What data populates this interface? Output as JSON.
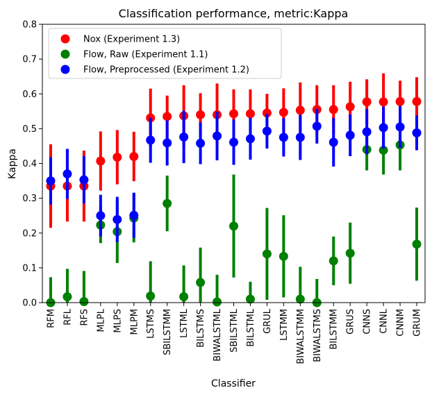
{
  "chart_data": {
    "type": "scatter",
    "title": "Classification performance, metric:Kappa",
    "xlabel": "Classifier",
    "ylabel": "Kappa",
    "ylim": [
      0.0,
      0.8
    ],
    "yticks": [
      "0.0",
      "0.1",
      "0.2",
      "0.3",
      "0.4",
      "0.5",
      "0.6",
      "0.7",
      "0.8"
    ],
    "legend_position": "top-left",
    "grid": false,
    "categories": [
      "RFM",
      "RFL",
      "RFS",
      "MLPL",
      "MLPS",
      "MLPM",
      "LSTMS",
      "SBILSTMM",
      "LSTML",
      "BILSTMS",
      "BIWALSTML",
      "SBILSTML",
      "BILSTML",
      "GRUL",
      "LSTMM",
      "BIWALSTMM",
      "BIWALSTMS",
      "BILSTMM",
      "GRUS",
      "CNNS",
      "CNNL",
      "CNNM",
      "GRUM"
    ],
    "series": [
      {
        "name": "Nox (Experiment 1.3)",
        "color": "#ff0000",
        "values": [
          0.335,
          0.335,
          0.335,
          0.407,
          0.418,
          0.42,
          0.531,
          0.535,
          0.537,
          0.54,
          0.54,
          0.543,
          0.543,
          0.545,
          0.547,
          0.553,
          0.555,
          0.555,
          0.563,
          0.577,
          0.577,
          0.578,
          0.578
        ],
        "errors": [
          0.12,
          0.102,
          0.102,
          0.085,
          0.078,
          0.071,
          0.084,
          0.06,
          0.088,
          0.062,
          0.09,
          0.07,
          0.07,
          0.055,
          0.069,
          0.08,
          0.07,
          0.07,
          0.072,
          0.065,
          0.082,
          0.06,
          0.07
        ]
      },
      {
        "name": "Flow, Raw (Experiment 1.1)",
        "color": "#008000",
        "values": [
          0.0,
          0.017,
          0.003,
          0.223,
          0.204,
          0.243,
          0.019,
          0.285,
          0.017,
          0.058,
          0.002,
          0.22,
          0.01,
          0.14,
          0.133,
          0.01,
          0.0,
          0.12,
          0.142,
          0.44,
          0.438,
          0.453,
          0.168
        ],
        "errors": [
          0.073,
          0.08,
          0.088,
          0.052,
          0.09,
          0.07,
          0.1,
          0.08,
          0.09,
          0.1,
          0.078,
          0.148,
          0.05,
          0.132,
          0.118,
          0.093,
          0.068,
          0.07,
          0.088,
          0.06,
          0.07,
          0.073,
          0.105
        ]
      },
      {
        "name": "Flow, Preprocessed (Experiment 1.2)",
        "color": "#0000ff",
        "values": [
          0.35,
          0.37,
          0.353,
          0.25,
          0.239,
          0.251,
          0.467,
          0.459,
          0.476,
          0.458,
          0.479,
          0.461,
          0.471,
          0.493,
          0.475,
          0.475,
          0.507,
          0.461,
          0.481,
          0.491,
          0.503,
          0.505,
          0.488
        ],
        "errors": [
          0.068,
          0.072,
          0.068,
          0.06,
          0.065,
          0.065,
          0.065,
          0.065,
          0.075,
          0.06,
          0.07,
          0.065,
          0.06,
          0.05,
          0.055,
          0.065,
          0.05,
          0.07,
          0.06,
          0.065,
          0.06,
          0.06,
          0.05
        ]
      }
    ]
  }
}
